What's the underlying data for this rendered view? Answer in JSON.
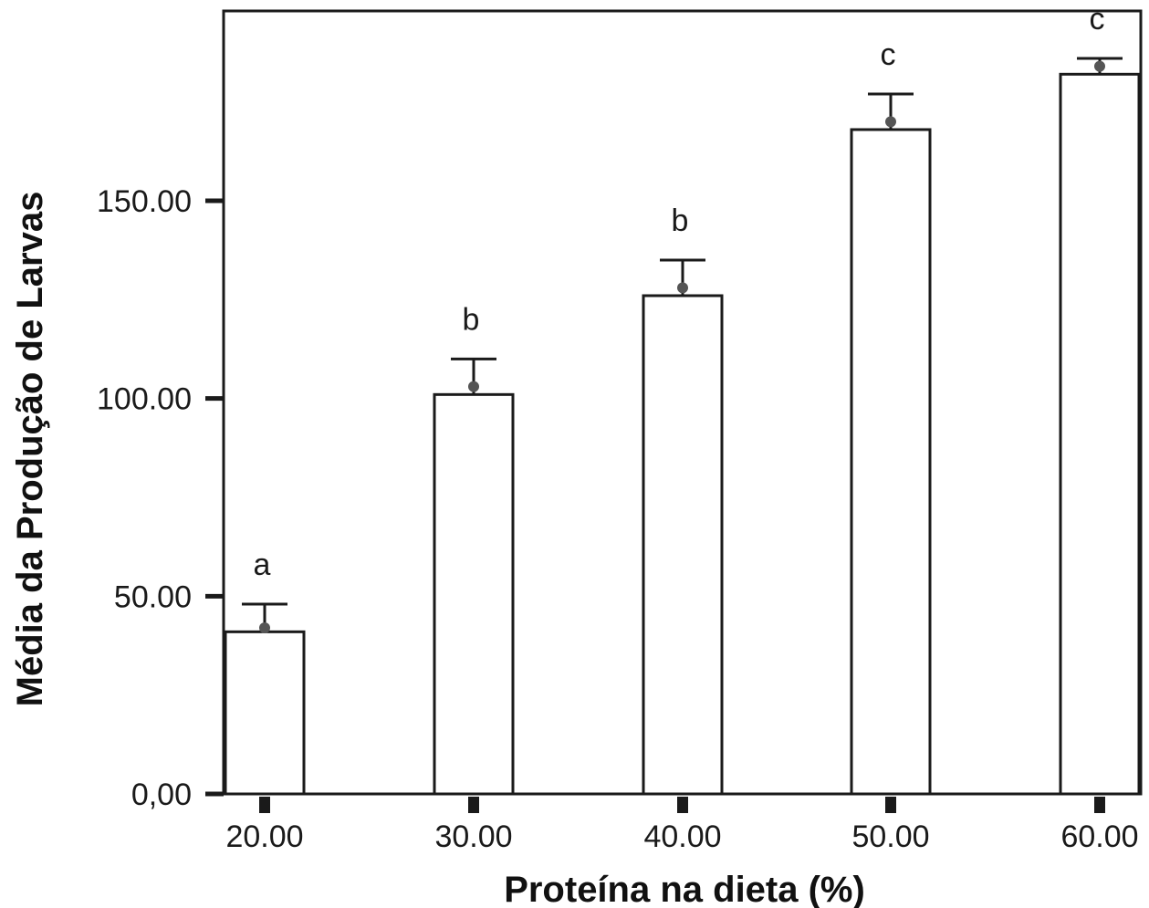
{
  "chart_data": {
    "type": "bar",
    "xlabel": "Proteína na dieta (%)",
    "ylabel": "Média da Produção de Larvas",
    "categories": [
      "20.00",
      "30.00",
      "40.00",
      "50.00",
      "60.00"
    ],
    "values": [
      41,
      101,
      126,
      168,
      182
    ],
    "error_upper": [
      48,
      110,
      135,
      177,
      186
    ],
    "points": [
      42,
      103,
      128,
      170,
      184
    ],
    "significance_letters": [
      "a",
      "b",
      "b",
      "c",
      "c"
    ],
    "ylim": [
      0,
      198
    ],
    "yticks": [
      {
        "value": 0,
        "label": "0,00"
      },
      {
        "value": 50,
        "label": "50.00"
      },
      {
        "value": 100,
        "label": "100.00"
      },
      {
        "value": 150,
        "label": "150.00"
      }
    ],
    "grid": false,
    "legend": "none"
  }
}
